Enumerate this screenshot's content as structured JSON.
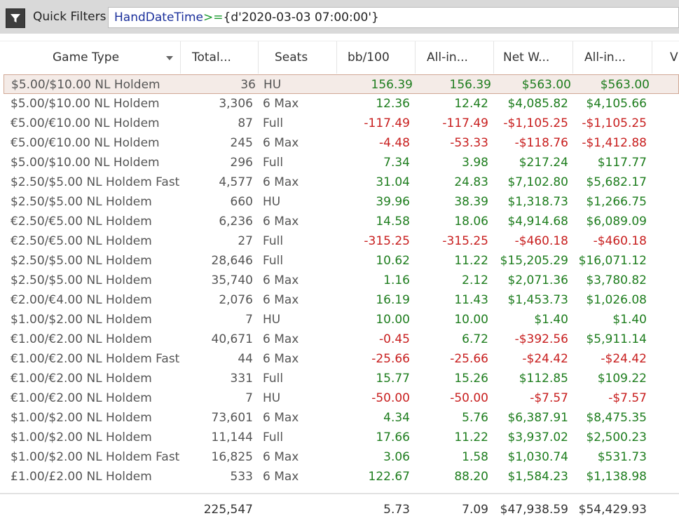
{
  "quick_filters": {
    "label": "Quick Filters",
    "expression": {
      "field": "HandDateTime",
      "operator": ">=",
      "value": "{d'2020-03-03 07:00:00'}"
    },
    "icon": "filter-icon"
  },
  "columns": [
    "Game Type",
    "Total...",
    "Seats",
    "bb/100",
    "All-in...",
    "Net W...",
    "All-in...",
    "V"
  ],
  "rows": [
    {
      "game": "$5.00/$10.00 NL Holdem",
      "total": "36",
      "seats": "HU",
      "bb100": "156.39",
      "allin_bb": "156.39",
      "net": "$563.00",
      "allin_net": "$563.00"
    },
    {
      "game": "$5.00/$10.00 NL Holdem",
      "total": "3,306",
      "seats": "6 Max",
      "bb100": "12.36",
      "allin_bb": "12.42",
      "net": "$4,085.82",
      "allin_net": "$4,105.66"
    },
    {
      "game": "€5.00/€10.00 NL Holdem",
      "total": "87",
      "seats": "Full",
      "bb100": "-117.49",
      "allin_bb": "-117.49",
      "net": "-$1,105.25",
      "allin_net": "-$1,105.25"
    },
    {
      "game": "€5.00/€10.00 NL Holdem",
      "total": "245",
      "seats": "6 Max",
      "bb100": "-4.48",
      "allin_bb": "-53.33",
      "net": "-$118.76",
      "allin_net": "-$1,412.88"
    },
    {
      "game": "$5.00/$10.00 NL Holdem",
      "total": "296",
      "seats": "Full",
      "bb100": "7.34",
      "allin_bb": "3.98",
      "net": "$217.24",
      "allin_net": "$117.77"
    },
    {
      "game": "$2.50/$5.00 NL Holdem Fast",
      "total": "4,577",
      "seats": "6 Max",
      "bb100": "31.04",
      "allin_bb": "24.83",
      "net": "$7,102.80",
      "allin_net": "$5,682.17"
    },
    {
      "game": "$2.50/$5.00 NL Holdem",
      "total": "660",
      "seats": "HU",
      "bb100": "39.96",
      "allin_bb": "38.39",
      "net": "$1,318.73",
      "allin_net": "$1,266.75"
    },
    {
      "game": "€2.50/€5.00 NL Holdem",
      "total": "6,236",
      "seats": "6 Max",
      "bb100": "14.58",
      "allin_bb": "18.06",
      "net": "$4,914.68",
      "allin_net": "$6,089.09"
    },
    {
      "game": "€2.50/€5.00 NL Holdem",
      "total": "27",
      "seats": "Full",
      "bb100": "-315.25",
      "allin_bb": "-315.25",
      "net": "-$460.18",
      "allin_net": "-$460.18"
    },
    {
      "game": "$2.50/$5.00 NL Holdem",
      "total": "28,646",
      "seats": "Full",
      "bb100": "10.62",
      "allin_bb": "11.22",
      "net": "$15,205.29",
      "allin_net": "$16,071.12"
    },
    {
      "game": "$2.50/$5.00 NL Holdem",
      "total": "35,740",
      "seats": "6 Max",
      "bb100": "1.16",
      "allin_bb": "2.12",
      "net": "$2,071.36",
      "allin_net": "$3,780.82"
    },
    {
      "game": "€2.00/€4.00 NL Holdem",
      "total": "2,076",
      "seats": "6 Max",
      "bb100": "16.19",
      "allin_bb": "11.43",
      "net": "$1,453.73",
      "allin_net": "$1,026.08"
    },
    {
      "game": "$1.00/$2.00 NL Holdem",
      "total": "7",
      "seats": "HU",
      "bb100": "10.00",
      "allin_bb": "10.00",
      "net": "$1.40",
      "allin_net": "$1.40"
    },
    {
      "game": "€1.00/€2.00 NL Holdem",
      "total": "40,671",
      "seats": "6 Max",
      "bb100": "-0.45",
      "allin_bb": "6.72",
      "net": "-$392.56",
      "allin_net": "$5,911.14"
    },
    {
      "game": "€1.00/€2.00 NL Holdem Fast",
      "total": "44",
      "seats": "6 Max",
      "bb100": "-25.66",
      "allin_bb": "-25.66",
      "net": "-$24.42",
      "allin_net": "-$24.42"
    },
    {
      "game": "€1.00/€2.00 NL Holdem",
      "total": "331",
      "seats": "Full",
      "bb100": "15.77",
      "allin_bb": "15.26",
      "net": "$112.85",
      "allin_net": "$109.22"
    },
    {
      "game": "€1.00/€2.00 NL Holdem",
      "total": "7",
      "seats": "HU",
      "bb100": "-50.00",
      "allin_bb": "-50.00",
      "net": "-$7.57",
      "allin_net": "-$7.57"
    },
    {
      "game": "$1.00/$2.00 NL Holdem",
      "total": "73,601",
      "seats": "6 Max",
      "bb100": "4.34",
      "allin_bb": "5.76",
      "net": "$6,387.91",
      "allin_net": "$8,475.35"
    },
    {
      "game": "$1.00/$2.00 NL Holdem",
      "total": "11,144",
      "seats": "Full",
      "bb100": "17.66",
      "allin_bb": "11.22",
      "net": "$3,937.02",
      "allin_net": "$2,500.23"
    },
    {
      "game": "$1.00/$2.00 NL Holdem Fast",
      "total": "16,825",
      "seats": "6 Max",
      "bb100": "3.06",
      "allin_bb": "1.58",
      "net": "$1,030.74",
      "allin_net": "$531.73"
    },
    {
      "game": "£1.00/£2.00 NL Holdem",
      "total": "533",
      "seats": "6 Max",
      "bb100": "122.67",
      "allin_bb": "88.20",
      "net": "$1,584.23",
      "allin_net": "$1,138.98"
    }
  ],
  "totals": {
    "total": "225,547",
    "bb100": "5.73",
    "allin_bb": "7.09",
    "net": "$47,938.59",
    "allin_net": "$54,429.93"
  },
  "colors": {
    "positive": "#1e7d1e",
    "negative": "#c81e1e",
    "selected_row": "#f4ebe7"
  }
}
